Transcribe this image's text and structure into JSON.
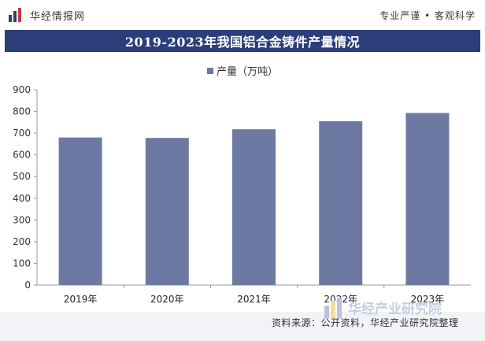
{
  "header": {
    "logo_text": "华经情报网",
    "tagline": "专业严谨 • 客观科学"
  },
  "colors": {
    "title_band": "#2b3e7a",
    "bar": "#6c7aa3"
  },
  "chart_data": {
    "type": "bar",
    "title": "2019-2023年我国铝合金铸件产量情况",
    "categories": [
      "2019年",
      "2020年",
      "2021年",
      "2022年",
      "2023年"
    ],
    "series": [
      {
        "name": "产量（万吨）",
        "values": [
          680,
          678,
          718,
          755,
          793
        ]
      }
    ],
    "ylim": [
      0,
      900
    ],
    "yticks": [
      0,
      100,
      200,
      300,
      400,
      500,
      600,
      700,
      800,
      900
    ],
    "legend_position": "top-center",
    "grid": false
  },
  "footer": {
    "source": "资料来源：公开资料，华经产业研究院整理",
    "brand": "华经产业研究院"
  }
}
